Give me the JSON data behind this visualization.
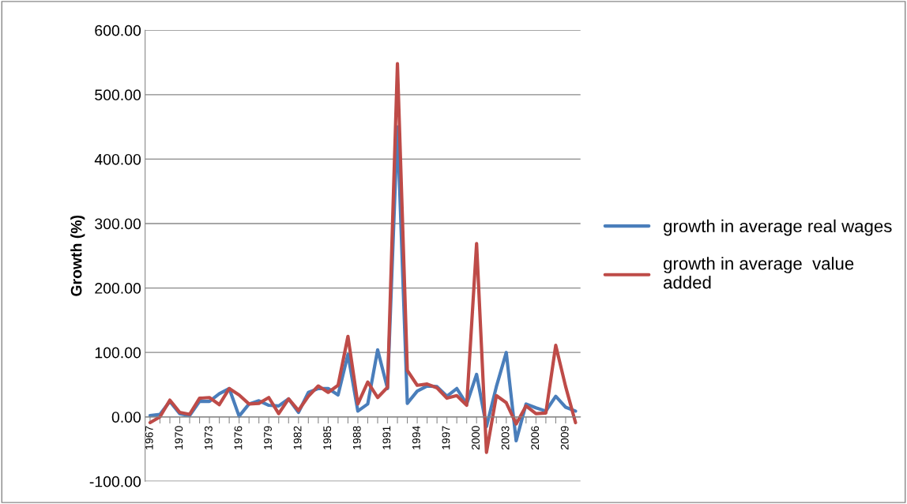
{
  "chart_data": {
    "type": "line",
    "ylabel": "Growth (%)",
    "categories": [
      "1967",
      null,
      null,
      "1970",
      null,
      null,
      "1973",
      null,
      null,
      "1976",
      null,
      null,
      "1979",
      null,
      null,
      "1982",
      null,
      null,
      "1985",
      null,
      null,
      "1988",
      null,
      null,
      "1991",
      null,
      null,
      "1994",
      null,
      null,
      "1997",
      null,
      null,
      "2000",
      null,
      null,
      "2003",
      null,
      null,
      "2006",
      null,
      null,
      "2009",
      null
    ],
    "series": [
      {
        "name": "growth in average real wages",
        "color": "#4a7ebb",
        "values": [
          2,
          4,
          24,
          5,
          2,
          24,
          24,
          36,
          44,
          1,
          20,
          25,
          18,
          17,
          28,
          7,
          38,
          44,
          44,
          34,
          97,
          9,
          20,
          104,
          44,
          450,
          21,
          40,
          48,
          47,
          32,
          44,
          20,
          66,
          -15,
          47,
          100,
          -37,
          20,
          14,
          9,
          32,
          15,
          9
        ]
      },
      {
        "name": "growth in average  value\nadded",
        "color": "#be4b48",
        "values": [
          -9,
          0,
          26,
          7,
          4,
          29,
          30,
          19,
          44,
          34,
          20,
          21,
          30,
          5,
          28,
          10,
          32,
          48,
          38,
          49,
          125,
          20,
          54,
          30,
          46,
          548,
          72,
          49,
          51,
          45,
          29,
          33,
          18,
          269,
          -55,
          33,
          22,
          -11,
          17,
          5,
          6,
          111,
          47,
          -9
        ]
      }
    ],
    "ylim": [
      -100,
      600
    ],
    "yticks": [
      {
        "value": -100,
        "label": "-100.00"
      },
      {
        "value": 0,
        "label": "0.00"
      },
      {
        "value": 100,
        "label": "100.00"
      },
      {
        "value": 200,
        "label": "200.00"
      },
      {
        "value": 300,
        "label": "300.00"
      },
      {
        "value": 400,
        "label": "400.00"
      },
      {
        "value": 500,
        "label": "500.00"
      },
      {
        "value": 600,
        "label": "600.00"
      }
    ],
    "grid": "y",
    "legend": "right",
    "marker": "none",
    "line_style": "solid"
  }
}
